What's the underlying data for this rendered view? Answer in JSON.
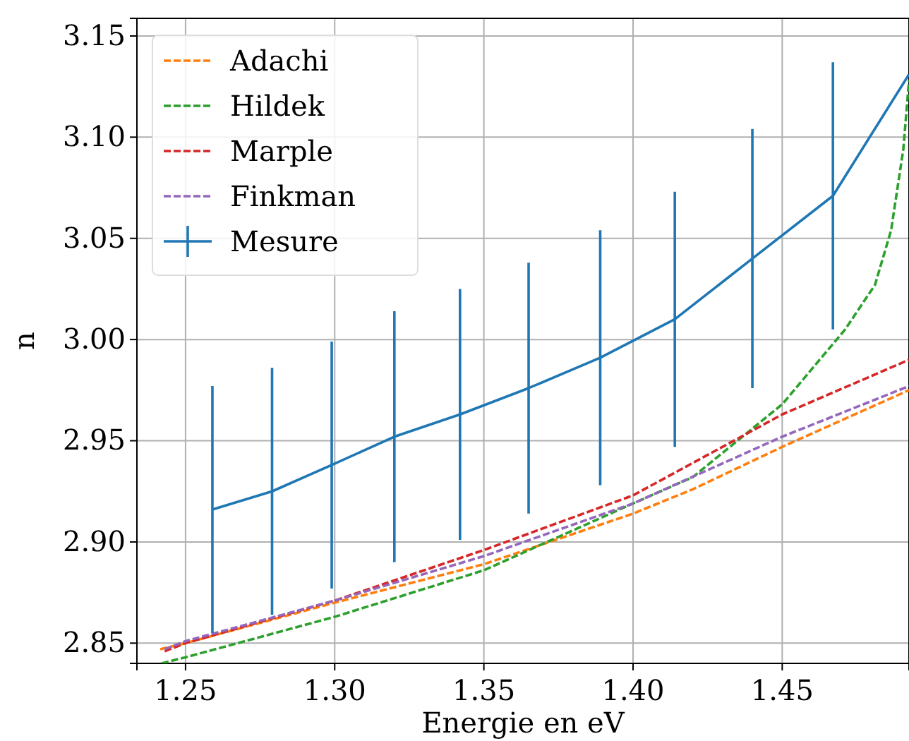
{
  "chart_data": {
    "type": "line",
    "xlabel": "Energie en eV",
    "ylabel": "n",
    "xlim": [
      1.2337,
      1.4925
    ],
    "ylim": [
      2.84,
      3.1587
    ],
    "xticks": [
      {
        "value": 1.25,
        "label": "1.25"
      },
      {
        "value": 1.3,
        "label": "1.30"
      },
      {
        "value": 1.35,
        "label": "1.35"
      },
      {
        "value": 1.4,
        "label": "1.40"
      },
      {
        "value": 1.45,
        "label": "1.45"
      }
    ],
    "yticks": [
      {
        "value": 2.85,
        "label": "2.85"
      },
      {
        "value": 2.9,
        "label": "2.90"
      },
      {
        "value": 2.95,
        "label": "2.95"
      },
      {
        "value": 3.0,
        "label": "3.00"
      },
      {
        "value": 3.05,
        "label": "3.05"
      },
      {
        "value": 3.1,
        "label": "3.10"
      },
      {
        "value": 3.15,
        "label": "3.15"
      }
    ],
    "grid": true,
    "legend": "top left",
    "marker": "none",
    "series": [
      {
        "name": "Adachi",
        "color": "#ff7f0e",
        "line_style": "dashed",
        "x": [
          1.2415,
          1.25,
          1.3,
          1.35,
          1.4,
          1.42,
          1.45,
          1.4925
        ],
        "values": [
          2.847,
          2.85,
          2.87,
          2.889,
          2.914,
          2.926,
          2.947,
          2.975
        ]
      },
      {
        "name": "Hildek",
        "color": "#2ca02c",
        "line_style": "dashed",
        "x": [
          1.242,
          1.25,
          1.3,
          1.35,
          1.4,
          1.42,
          1.45,
          1.4711,
          1.4811,
          1.4865,
          1.4906,
          1.4925
        ],
        "values": [
          2.84,
          2.843,
          2.863,
          2.886,
          2.919,
          2.932,
          2.968,
          3.005,
          3.027,
          3.054,
          3.094,
          3.128
        ]
      },
      {
        "name": "Marple",
        "color": "#d62728",
        "line_style": "dashed",
        "x": [
          1.243,
          1.25,
          1.3,
          1.35,
          1.4,
          1.45,
          1.4925
        ],
        "values": [
          2.846,
          2.85,
          2.871,
          2.896,
          2.923,
          2.963,
          2.99
        ]
      },
      {
        "name": "Finkman",
        "color": "#9467bd",
        "line_style": "dashed",
        "x": [
          1.243,
          1.25,
          1.3,
          1.35,
          1.4,
          1.45,
          1.4925
        ],
        "values": [
          2.847,
          2.851,
          2.871,
          2.893,
          2.919,
          2.952,
          2.977
        ]
      },
      {
        "name": "Mesure",
        "color": "#1f77b4",
        "line_style": "solid",
        "x": [
          1.259,
          1.279,
          1.299,
          1.32,
          1.342,
          1.365,
          1.389,
          1.414,
          1.44,
          1.467,
          1.4925
        ],
        "values": [
          2.916,
          2.925,
          2.938,
          2.952,
          2.963,
          2.976,
          2.991,
          3.01,
          3.04,
          3.071,
          3.131
        ],
        "errors": [
          0.061,
          0.061,
          0.061,
          0.062,
          0.062,
          0.062,
          0.063,
          0.063,
          0.064,
          0.066,
          null
        ]
      }
    ]
  }
}
